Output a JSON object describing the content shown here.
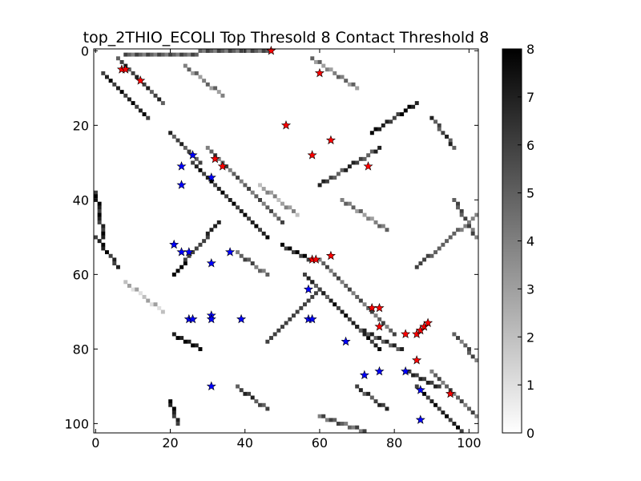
{
  "chart_data": {
    "type": "heatmap",
    "title": "top_2THIO_ECOLI Top Thresold 8 Contact Threshold 8",
    "xlabel": "",
    "ylabel": "",
    "xlim": [
      0,
      103
    ],
    "ylim": [
      103,
      0
    ],
    "x_ticks": [
      0,
      20,
      40,
      60,
      80,
      100
    ],
    "y_ticks": [
      0,
      20,
      40,
      60,
      80,
      100
    ],
    "colorbar": {
      "min": 0,
      "max": 8,
      "ticks": [
        0,
        1,
        2,
        3,
        4,
        5,
        6,
        7,
        8
      ],
      "colormap": "gray_r"
    },
    "background": "#ffffff",
    "cell_groups": [
      {
        "name": "diagonal-band-1",
        "from": [
          2,
          6
        ],
        "to": [
          14,
          18
        ],
        "value": 8
      },
      {
        "name": "diagonal-band-1b",
        "from": [
          6,
          2
        ],
        "to": [
          18,
          14
        ],
        "value": 7
      },
      {
        "name": "diagonal-band-2",
        "from": [
          26,
          30
        ],
        "to": [
          46,
          50
        ],
        "value": 8
      },
      {
        "name": "diagonal-band-2b",
        "from": [
          30,
          26
        ],
        "to": [
          50,
          46
        ],
        "value": 6
      },
      {
        "name": "diagonal-band-3",
        "from": [
          56,
          60
        ],
        "to": [
          76,
          80
        ],
        "value": 8
      },
      {
        "name": "diagonal-band-3b",
        "from": [
          60,
          56
        ],
        "to": [
          80,
          76
        ],
        "value": 6
      },
      {
        "name": "diagonal-band-4",
        "from": [
          86,
          90
        ],
        "to": [
          102,
          106
        ],
        "value": 8
      },
      {
        "name": "diagonal-band-4b",
        "from": [
          90,
          86
        ],
        "to": [
          103,
          99
        ],
        "value": 6
      },
      {
        "name": "anti-band-1",
        "from": [
          21,
          60
        ],
        "to": [
          33,
          46
        ],
        "value": 8
      },
      {
        "name": "anti-band-2",
        "from": [
          46,
          78
        ],
        "to": [
          60,
          64
        ],
        "value": 7
      },
      {
        "name": "anti-band-3",
        "from": [
          21,
          76
        ],
        "to": [
          28,
          80
        ],
        "value": 8
      },
      {
        "name": "anti-band-4",
        "from": [
          74,
          22
        ],
        "to": [
          86,
          14
        ],
        "value": 8
      },
      {
        "name": "anti-band-5",
        "from": [
          60,
          36
        ],
        "to": [
          76,
          26
        ],
        "value": 7
      },
      {
        "name": "anti-band-6",
        "from": [
          86,
          58
        ],
        "to": [
          102,
          44
        ],
        "value": 6
      },
      {
        "name": "left-edge-1",
        "from": [
          0,
          38
        ],
        "to": [
          2,
          50
        ],
        "value": 8
      },
      {
        "name": "left-edge-2",
        "from": [
          0,
          50
        ],
        "to": [
          6,
          58
        ],
        "value": 8
      },
      {
        "name": "top-rows",
        "from": [
          8,
          1
        ],
        "to": [
          46,
          0
        ],
        "value": 6
      },
      {
        "name": "block-20-28",
        "from": [
          20,
          22
        ],
        "to": [
          28,
          30
        ],
        "value": 7
      },
      {
        "name": "block-50-56",
        "from": [
          50,
          52
        ],
        "to": [
          58,
          56
        ],
        "value": 8
      },
      {
        "name": "block-58-62",
        "from": [
          58,
          62
        ],
        "to": [
          62,
          66
        ],
        "value": 7
      },
      {
        "name": "block-72-80",
        "from": [
          70,
          74
        ],
        "to": [
          82,
          80
        ],
        "value": 7
      },
      {
        "name": "block-84-92",
        "from": [
          84,
          86
        ],
        "to": [
          92,
          90
        ],
        "value": 8
      },
      {
        "name": "block-right",
        "from": [
          96,
          76
        ],
        "to": [
          103,
          84
        ],
        "value": 6
      },
      {
        "name": "lower-left",
        "from": [
          20,
          94
        ],
        "to": [
          22,
          100
        ],
        "value": 8
      },
      {
        "name": "lower-mid",
        "from": [
          38,
          90
        ],
        "to": [
          46,
          96
        ],
        "value": 7
      },
      {
        "name": "right-col",
        "from": [
          96,
          40
        ],
        "to": [
          102,
          50
        ],
        "value": 6
      },
      {
        "name": "right-col-2",
        "from": [
          90,
          18
        ],
        "to": [
          96,
          26
        ],
        "value": 7
      },
      {
        "name": "mid-cluster",
        "from": [
          38,
          54
        ],
        "to": [
          46,
          60
        ],
        "value": 6
      },
      {
        "name": "mid-cluster-2",
        "from": [
          70,
          90
        ],
        "to": [
          78,
          96
        ],
        "value": 7
      },
      {
        "name": "lower-right",
        "from": [
          60,
          98
        ],
        "to": [
          72,
          102
        ],
        "value": 6
      },
      {
        "name": "sparse-upper",
        "from": [
          24,
          4
        ],
        "to": [
          34,
          12
        ],
        "value": 5
      },
      {
        "name": "sparse-upper-2",
        "from": [
          58,
          2
        ],
        "to": [
          70,
          10
        ],
        "value": 5
      },
      {
        "name": "sparse-mid",
        "from": [
          44,
          36
        ],
        "to": [
          54,
          44
        ],
        "value": 4
      },
      {
        "name": "sparse-mid-2",
        "from": [
          66,
          40
        ],
        "to": [
          78,
          48
        ],
        "value": 5
      },
      {
        "name": "sparse-low",
        "from": [
          8,
          62
        ],
        "to": [
          18,
          70
        ],
        "value": 3
      }
    ],
    "markers": [
      {
        "name": "red",
        "color": "#ff0000",
        "points": [
          [
            47,
            0
          ],
          [
            7,
            5
          ],
          [
            8,
            5
          ],
          [
            12,
            8
          ],
          [
            60,
            6
          ],
          [
            51,
            20
          ],
          [
            63,
            24
          ],
          [
            58,
            28
          ],
          [
            73,
            31
          ],
          [
            32,
            29
          ],
          [
            34,
            31
          ],
          [
            63,
            55
          ],
          [
            58,
            56
          ],
          [
            59,
            56
          ],
          [
            74,
            69
          ],
          [
            76,
            69
          ],
          [
            76,
            74
          ],
          [
            83,
            76
          ],
          [
            86,
            76
          ],
          [
            87,
            75
          ],
          [
            88,
            74
          ],
          [
            89,
            73
          ],
          [
            86,
            83
          ],
          [
            95,
            92
          ]
        ]
      },
      {
        "name": "blue",
        "color": "#0000ff",
        "points": [
          [
            26,
            28
          ],
          [
            23,
            31
          ],
          [
            31,
            34
          ],
          [
            23,
            36
          ],
          [
            21,
            52
          ],
          [
            23,
            54
          ],
          [
            25,
            54
          ],
          [
            36,
            54
          ],
          [
            31,
            57
          ],
          [
            57,
            64
          ],
          [
            25,
            72
          ],
          [
            26,
            72
          ],
          [
            31,
            71
          ],
          [
            31,
            72
          ],
          [
            39,
            72
          ],
          [
            57,
            72
          ],
          [
            58,
            72
          ],
          [
            67,
            78
          ],
          [
            72,
            87
          ],
          [
            76,
            86
          ],
          [
            83,
            86
          ],
          [
            87,
            91
          ],
          [
            31,
            90
          ],
          [
            87,
            99
          ]
        ]
      }
    ]
  }
}
